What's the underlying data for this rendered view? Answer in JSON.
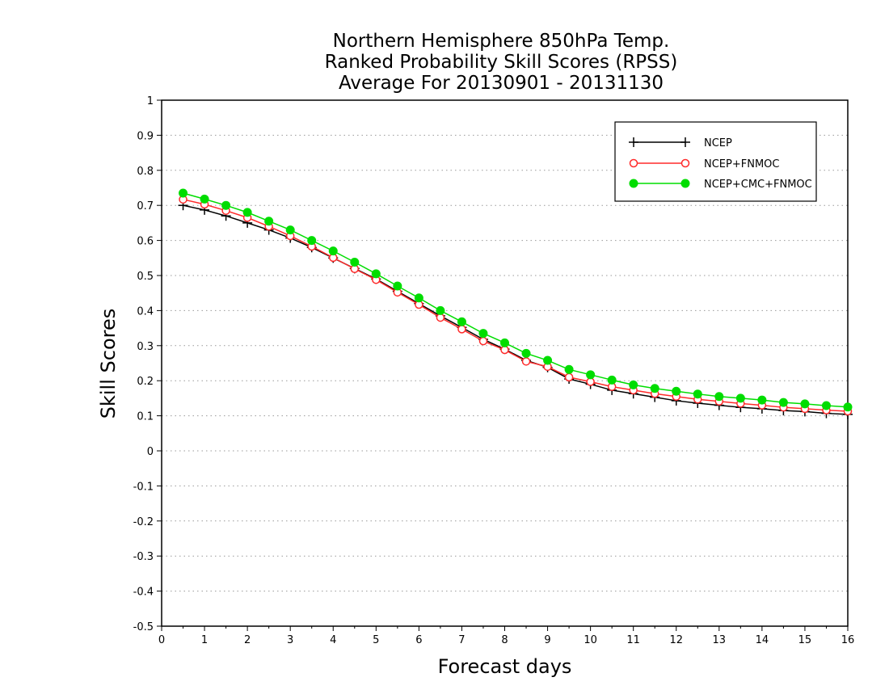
{
  "chart_data": {
    "type": "line",
    "title": [
      "Northern Hemisphere 850hPa Temp.",
      "Ranked Probability Skill Scores (RPSS)",
      "Average For 20130901 - 20131130"
    ],
    "xlabel": "Forecast days",
    "ylabel": "Skill Scores",
    "xlim": [
      0,
      16
    ],
    "ylim": [
      -0.5,
      1
    ],
    "x_ticks": [
      0,
      1,
      2,
      3,
      4,
      5,
      6,
      7,
      8,
      9,
      10,
      11,
      12,
      13,
      14,
      15,
      16
    ],
    "y_ticks": [
      -0.5,
      -0.4,
      -0.3,
      -0.2,
      -0.1,
      0,
      0.1,
      0.2,
      0.3,
      0.4,
      0.5,
      0.6,
      0.7,
      0.8,
      0.9,
      1
    ],
    "grid": "horizontal dotted",
    "legend_position": "top-right",
    "x": [
      0.5,
      1,
      1.5,
      2,
      2.5,
      3,
      3.5,
      4,
      4.5,
      5,
      5.5,
      6,
      6.5,
      7,
      7.5,
      8,
      8.5,
      9,
      9.5,
      10,
      10.5,
      11,
      11.5,
      12,
      12.5,
      13,
      13.5,
      14,
      14.5,
      15,
      15.5,
      16
    ],
    "series": [
      {
        "name": "NCEP",
        "color": "#000000",
        "marker": "plus",
        "values": [
          0.7,
          0.687,
          0.67,
          0.65,
          0.63,
          0.607,
          0.58,
          0.55,
          0.52,
          0.49,
          0.455,
          0.42,
          0.385,
          0.352,
          0.318,
          0.29,
          0.258,
          0.238,
          0.205,
          0.19,
          0.173,
          0.163,
          0.153,
          0.143,
          0.136,
          0.13,
          0.124,
          0.12,
          0.115,
          0.112,
          0.107,
          0.104
        ]
      },
      {
        "name": "NCEP+FNMOC",
        "color": "#ff2a2a",
        "marker": "open-circle",
        "values": [
          0.717,
          0.703,
          0.685,
          0.665,
          0.64,
          0.613,
          0.583,
          0.551,
          0.519,
          0.488,
          0.452,
          0.417,
          0.38,
          0.347,
          0.313,
          0.288,
          0.255,
          0.24,
          0.21,
          0.197,
          0.183,
          0.173,
          0.163,
          0.155,
          0.147,
          0.141,
          0.135,
          0.13,
          0.124,
          0.12,
          0.116,
          0.113
        ]
      },
      {
        "name": "NCEP+CMC+FNMOC",
        "color": "#00dd00",
        "marker": "filled-circle",
        "values": [
          0.735,
          0.718,
          0.7,
          0.68,
          0.655,
          0.63,
          0.6,
          0.57,
          0.538,
          0.505,
          0.47,
          0.436,
          0.4,
          0.368,
          0.335,
          0.308,
          0.278,
          0.258,
          0.232,
          0.217,
          0.202,
          0.188,
          0.178,
          0.17,
          0.162,
          0.155,
          0.15,
          0.145,
          0.138,
          0.134,
          0.129,
          0.125
        ]
      }
    ]
  }
}
